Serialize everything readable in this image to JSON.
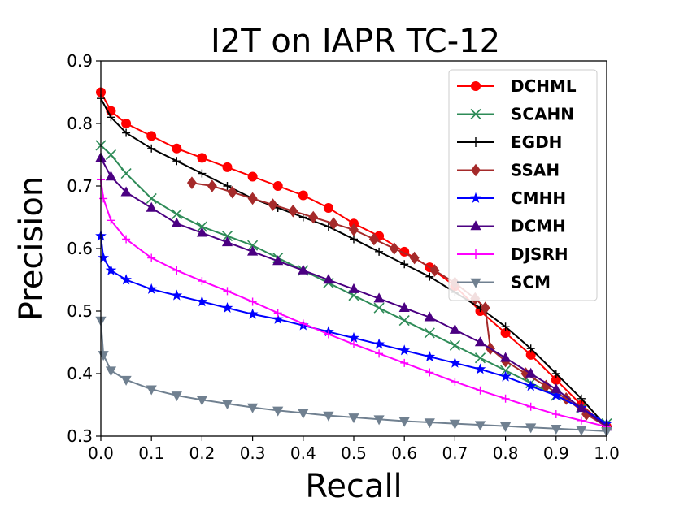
{
  "chart_data": {
    "type": "line",
    "title": "I2T on IAPR TC-12",
    "xlabel": "Recall",
    "ylabel": "Precision",
    "xlim": [
      0.0,
      1.0
    ],
    "ylim": [
      0.3,
      0.9
    ],
    "xticks": [
      "0.0",
      "0.1",
      "0.2",
      "0.3",
      "0.4",
      "0.5",
      "0.6",
      "0.7",
      "0.8",
      "0.9",
      "1.0"
    ],
    "yticks": [
      "0.3",
      "0.4",
      "0.5",
      "0.6",
      "0.7",
      "0.8",
      "0.9"
    ],
    "grid": false,
    "legend_position": "top-right",
    "series": [
      {
        "name": "DCHML",
        "color": "#ff0000",
        "marker": "circle",
        "x": [
          0.0,
          0.02,
          0.05,
          0.1,
          0.15,
          0.2,
          0.25,
          0.3,
          0.35,
          0.4,
          0.45,
          0.5,
          0.55,
          0.6,
          0.65,
          0.7,
          0.75,
          0.8,
          0.85,
          0.9,
          0.95,
          1.0
        ],
        "y": [
          0.85,
          0.82,
          0.8,
          0.78,
          0.76,
          0.745,
          0.73,
          0.715,
          0.7,
          0.685,
          0.665,
          0.64,
          0.62,
          0.595,
          0.57,
          0.54,
          0.5,
          0.465,
          0.43,
          0.39,
          0.35,
          0.315
        ]
      },
      {
        "name": "SCAHN",
        "color": "#2e8b57",
        "marker": "x",
        "x": [
          0.0,
          0.02,
          0.05,
          0.1,
          0.15,
          0.2,
          0.25,
          0.3,
          0.35,
          0.4,
          0.45,
          0.5,
          0.55,
          0.6,
          0.65,
          0.7,
          0.75,
          0.8,
          0.85,
          0.9,
          0.95,
          1.0
        ],
        "y": [
          0.765,
          0.75,
          0.72,
          0.68,
          0.655,
          0.635,
          0.62,
          0.605,
          0.585,
          0.565,
          0.545,
          0.525,
          0.505,
          0.485,
          0.465,
          0.445,
          0.425,
          0.405,
          0.385,
          0.365,
          0.345,
          0.32
        ]
      },
      {
        "name": "EGDH",
        "color": "#000000",
        "marker": "plus",
        "x": [
          0.0,
          0.02,
          0.05,
          0.1,
          0.15,
          0.2,
          0.25,
          0.3,
          0.35,
          0.4,
          0.45,
          0.5,
          0.55,
          0.6,
          0.65,
          0.7,
          0.75,
          0.8,
          0.85,
          0.9,
          0.95,
          1.0
        ],
        "y": [
          0.84,
          0.81,
          0.785,
          0.76,
          0.74,
          0.72,
          0.7,
          0.68,
          0.665,
          0.65,
          0.635,
          0.615,
          0.595,
          0.575,
          0.555,
          0.53,
          0.505,
          0.475,
          0.44,
          0.4,
          0.36,
          0.315
        ]
      },
      {
        "name": "SSAH",
        "color": "#a52a2a",
        "marker": "diamond",
        "x": [
          0.18,
          0.22,
          0.26,
          0.3,
          0.34,
          0.38,
          0.42,
          0.46,
          0.5,
          0.54,
          0.58,
          0.62,
          0.66,
          0.7,
          0.74,
          0.76,
          0.77,
          0.8,
          0.84,
          0.88,
          0.92,
          0.96,
          1.0
        ],
        "y": [
          0.705,
          0.7,
          0.69,
          0.68,
          0.67,
          0.66,
          0.65,
          0.64,
          0.63,
          0.615,
          0.6,
          0.585,
          0.565,
          0.545,
          0.52,
          0.505,
          0.44,
          0.42,
          0.4,
          0.38,
          0.36,
          0.335,
          0.315
        ]
      },
      {
        "name": "CMHH",
        "color": "#0000ff",
        "marker": "star",
        "x": [
          0.0,
          0.005,
          0.02,
          0.05,
          0.1,
          0.15,
          0.2,
          0.25,
          0.3,
          0.35,
          0.4,
          0.45,
          0.5,
          0.55,
          0.6,
          0.65,
          0.7,
          0.75,
          0.8,
          0.85,
          0.9,
          0.95,
          1.0
        ],
        "y": [
          0.62,
          0.585,
          0.565,
          0.55,
          0.535,
          0.525,
          0.515,
          0.505,
          0.495,
          0.487,
          0.477,
          0.467,
          0.457,
          0.447,
          0.437,
          0.427,
          0.417,
          0.407,
          0.395,
          0.38,
          0.365,
          0.345,
          0.32
        ]
      },
      {
        "name": "DCMH",
        "color": "#4b0082",
        "marker": "triangle-up",
        "x": [
          0.0,
          0.02,
          0.05,
          0.1,
          0.15,
          0.2,
          0.25,
          0.3,
          0.35,
          0.4,
          0.45,
          0.5,
          0.55,
          0.6,
          0.65,
          0.7,
          0.75,
          0.8,
          0.85,
          0.9,
          0.95,
          1.0
        ],
        "y": [
          0.745,
          0.715,
          0.69,
          0.665,
          0.64,
          0.625,
          0.61,
          0.595,
          0.58,
          0.565,
          0.55,
          0.535,
          0.52,
          0.505,
          0.49,
          0.47,
          0.45,
          0.425,
          0.4,
          0.375,
          0.345,
          0.315
        ]
      },
      {
        "name": "DJSRH",
        "color": "#ff00ff",
        "marker": "plus",
        "x": [
          0.0,
          0.005,
          0.02,
          0.05,
          0.1,
          0.15,
          0.2,
          0.25,
          0.3,
          0.35,
          0.4,
          0.45,
          0.5,
          0.55,
          0.6,
          0.65,
          0.7,
          0.75,
          0.8,
          0.85,
          0.9,
          0.95,
          1.0
        ],
        "y": [
          0.71,
          0.68,
          0.645,
          0.615,
          0.585,
          0.565,
          0.548,
          0.532,
          0.515,
          0.497,
          0.48,
          0.463,
          0.447,
          0.432,
          0.417,
          0.402,
          0.387,
          0.373,
          0.36,
          0.347,
          0.335,
          0.325,
          0.315
        ]
      },
      {
        "name": "SCM",
        "color": "#708090",
        "marker": "triangle-down",
        "x": [
          0.0,
          0.005,
          0.02,
          0.05,
          0.1,
          0.15,
          0.2,
          0.25,
          0.3,
          0.35,
          0.4,
          0.45,
          0.5,
          0.55,
          0.6,
          0.65,
          0.7,
          0.75,
          0.8,
          0.85,
          0.9,
          0.95,
          1.0
        ],
        "y": [
          0.485,
          0.43,
          0.405,
          0.39,
          0.375,
          0.365,
          0.358,
          0.352,
          0.346,
          0.341,
          0.337,
          0.333,
          0.33,
          0.327,
          0.324,
          0.322,
          0.32,
          0.318,
          0.316,
          0.314,
          0.312,
          0.31,
          0.308
        ]
      }
    ]
  }
}
